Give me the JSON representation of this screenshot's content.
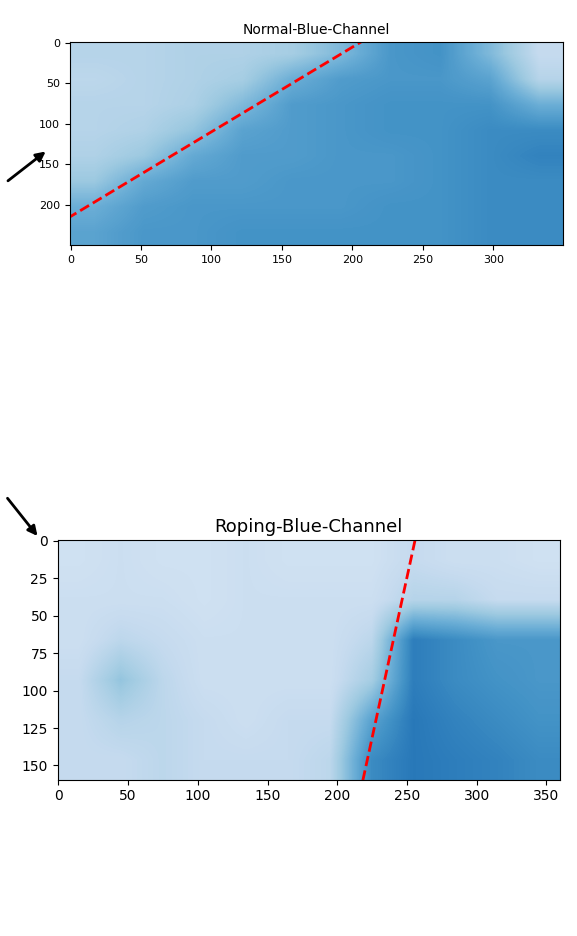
{
  "chart_data": [
    {
      "type": "heatmap",
      "title": "Normal-Blue-Channel",
      "xlim": [
        -0.5,
        349.5
      ],
      "ylim": [
        249.5,
        -0.5
      ],
      "xticks": [
        0,
        50,
        100,
        150,
        200,
        250,
        300
      ],
      "yticks": [
        0,
        50,
        100,
        150,
        200
      ],
      "cell_range": [
        0,
        1
      ],
      "cells": [
        [
          0.3,
          0.3,
          0.32,
          0.32,
          0.35,
          0.45,
          0.6,
          0.62,
          0.45,
          0.25
        ],
        [
          0.28,
          0.3,
          0.32,
          0.35,
          0.5,
          0.58,
          0.6,
          0.6,
          0.55,
          0.3
        ],
        [
          0.3,
          0.3,
          0.33,
          0.45,
          0.58,
          0.6,
          0.62,
          0.62,
          0.62,
          0.5
        ],
        [
          0.3,
          0.32,
          0.4,
          0.55,
          0.58,
          0.6,
          0.62,
          0.62,
          0.65,
          0.65
        ],
        [
          0.32,
          0.38,
          0.52,
          0.58,
          0.58,
          0.6,
          0.6,
          0.62,
          0.65,
          0.68
        ],
        [
          0.38,
          0.52,
          0.58,
          0.58,
          0.6,
          0.6,
          0.6,
          0.62,
          0.65,
          0.65
        ],
        [
          0.5,
          0.58,
          0.6,
          0.6,
          0.6,
          0.6,
          0.62,
          0.62,
          0.65,
          0.65
        ],
        [
          0.55,
          0.6,
          0.6,
          0.62,
          0.62,
          0.62,
          0.62,
          0.62,
          0.65,
          0.65
        ]
      ],
      "lines": [
        {
          "x": [
            -20,
            215
          ],
          "y": [
            235,
            -10
          ],
          "color": "#ff0000",
          "line_style": "dashed"
        }
      ]
    },
    {
      "type": "heatmap",
      "title": "Roping-Blue-Channel",
      "xlim": [
        -0.5,
        359.5
      ],
      "ylim": [
        159.5,
        -0.5
      ],
      "xticks": [
        0,
        50,
        100,
        150,
        200,
        250,
        300,
        350
      ],
      "yticks": [
        0,
        25,
        50,
        75,
        100,
        125,
        150
      ],
      "cell_range": [
        0,
        1
      ],
      "cells": [
        [
          0.2,
          0.22,
          0.2,
          0.2,
          0.22,
          0.2,
          0.2,
          0.2,
          0.25,
          0.22,
          0.22,
          0.2
        ],
        [
          0.22,
          0.22,
          0.22,
          0.2,
          0.22,
          0.22,
          0.22,
          0.22,
          0.3,
          0.3,
          0.25,
          0.25
        ],
        [
          0.22,
          0.28,
          0.25,
          0.22,
          0.22,
          0.22,
          0.22,
          0.28,
          0.7,
          0.65,
          0.6,
          0.6
        ],
        [
          0.25,
          0.4,
          0.28,
          0.22,
          0.22,
          0.22,
          0.22,
          0.35,
          0.7,
          0.65,
          0.62,
          0.6
        ],
        [
          0.25,
          0.3,
          0.28,
          0.25,
          0.22,
          0.25,
          0.25,
          0.55,
          0.72,
          0.68,
          0.65,
          0.62
        ],
        [
          0.25,
          0.25,
          0.28,
          0.25,
          0.25,
          0.25,
          0.28,
          0.65,
          0.72,
          0.7,
          0.68,
          0.65
        ]
      ],
      "lines": [
        {
          "x": [
            258,
            216
          ],
          "y": [
            -10,
            170
          ],
          "color": "#ff0000",
          "line_style": "dashed"
        }
      ]
    }
  ]
}
